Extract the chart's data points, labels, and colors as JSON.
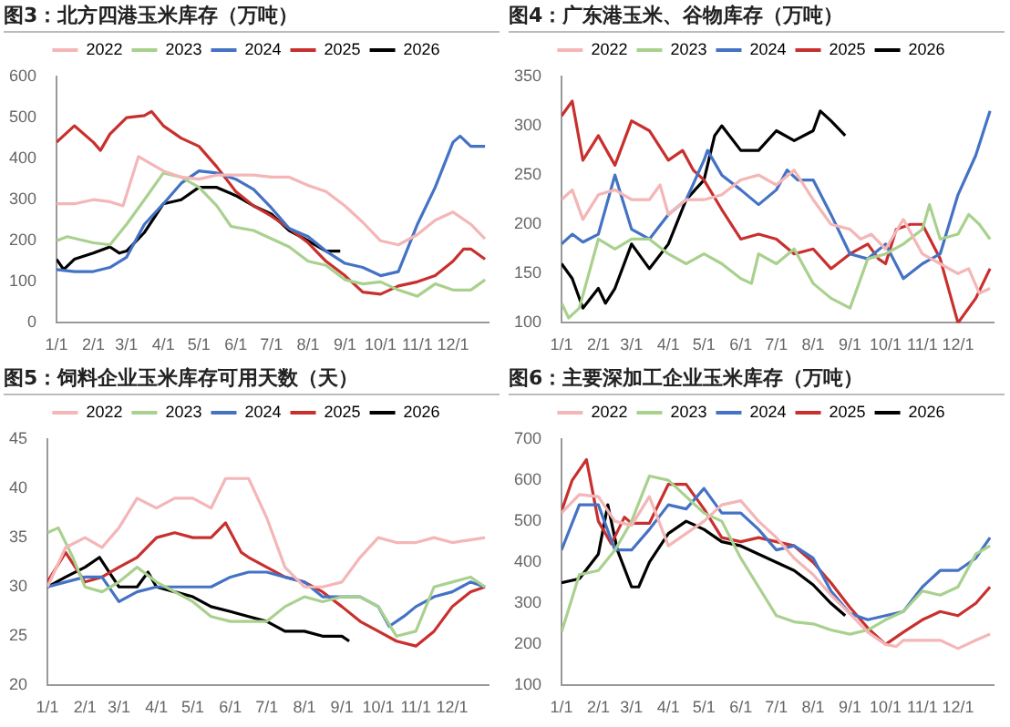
{
  "chart_data": [
    {
      "type": "line",
      "title": "图3：北方四港玉米库存（万吨）",
      "legend": "top",
      "grid": false,
      "marker": "none",
      "line_style": "solid",
      "xlim": [
        "--01-01",
        "--12-31"
      ],
      "xticks": [
        {
          "value": "--01-01",
          "label": "1/1"
        },
        {
          "value": "--02-01",
          "label": "2/1"
        },
        {
          "value": "--03-01",
          "label": "3/1"
        },
        {
          "value": "--04-01",
          "label": "4/1"
        },
        {
          "value": "--05-01",
          "label": "5/1"
        },
        {
          "value": "--06-01",
          "label": "6/1"
        },
        {
          "value": "--07-01",
          "label": "7/1"
        },
        {
          "value": "--08-01",
          "label": "8/1"
        },
        {
          "value": "--09-01",
          "label": "9/1"
        },
        {
          "value": "--10-01",
          "label": "10/1"
        },
        {
          "value": "--11-01",
          "label": "11/1"
        },
        {
          "value": "--12-01",
          "label": "12/1"
        }
      ],
      "ylim": [
        0,
        600
      ],
      "yticks": [
        0,
        100,
        200,
        300,
        400,
        500,
        600
      ],
      "series": [
        {
          "name": "2022",
          "color": "#f4b6b6",
          "x": [
            "--01-01",
            "--01-16",
            "--02-01",
            "--02-15",
            "--02-26",
            "--03-11",
            "--04-01",
            "--04-16",
            "--05-01",
            "--05-16",
            "--06-01",
            "--06-16",
            "--07-01",
            "--07-16",
            "--08-01",
            "--08-16",
            "--09-01",
            "--09-16",
            "--10-01",
            "--10-16",
            "--11-01",
            "--11-16",
            "--12-01",
            "--12-16",
            "--12-28"
          ],
          "values": [
            290,
            290,
            300,
            295,
            285,
            405,
            370,
            355,
            350,
            360,
            360,
            360,
            355,
            355,
            335,
            320,
            285,
            245,
            200,
            190,
            215,
            250,
            270,
            240,
            205
          ]
        },
        {
          "name": "2023",
          "color": "#a9d18e",
          "x": [
            "--01-01",
            "--01-10",
            "--02-01",
            "--02-15",
            "--03-01",
            "--03-16",
            "--04-01",
            "--04-16",
            "--05-01",
            "--05-16",
            "--05-28",
            "--06-16",
            "--07-01",
            "--07-16",
            "--08-01",
            "--08-16",
            "--09-01",
            "--09-16",
            "--10-01",
            "--10-16",
            "--11-01",
            "--11-16",
            "--12-01",
            "--12-16",
            "--12-28"
          ],
          "values": [
            200,
            210,
            195,
            190,
            240,
            300,
            365,
            355,
            330,
            285,
            235,
            225,
            205,
            185,
            150,
            140,
            105,
            95,
            100,
            80,
            65,
            95,
            80,
            80,
            105
          ]
        },
        {
          "name": "2024",
          "color": "#4472c4",
          "x": [
            "--01-01",
            "--01-16",
            "--02-01",
            "--02-15",
            "--03-01",
            "--03-16",
            "--04-01",
            "--04-16",
            "--05-01",
            "--05-16",
            "--06-01",
            "--06-16",
            "--07-01",
            "--07-16",
            "--08-01",
            "--08-16",
            "--09-01",
            "--09-16",
            "--10-01",
            "--10-16",
            "--11-01",
            "--11-16",
            "--12-01",
            "--12-07",
            "--12-16",
            "--12-28"
          ],
          "values": [
            130,
            125,
            125,
            135,
            160,
            240,
            290,
            340,
            370,
            365,
            350,
            325,
            280,
            230,
            210,
            175,
            145,
            135,
            115,
            125,
            240,
            330,
            440,
            455,
            430,
            430
          ]
        },
        {
          "name": "2025",
          "color": "#c8302e",
          "x": [
            "--01-01",
            "--01-16",
            "--02-01",
            "--02-07",
            "--02-15",
            "--03-01",
            "--03-16",
            "--03-22",
            "--04-01",
            "--04-16",
            "--05-01",
            "--05-16",
            "--06-01",
            "--06-16",
            "--07-01",
            "--07-16",
            "--08-01",
            "--08-16",
            "--09-01",
            "--09-16",
            "--10-01",
            "--10-16",
            "--11-01",
            "--11-16",
            "--12-01",
            "--12-10",
            "--12-16",
            "--12-28"
          ],
          "values": [
            440,
            480,
            440,
            420,
            460,
            500,
            505,
            515,
            480,
            450,
            430,
            380,
            320,
            285,
            260,
            230,
            195,
            150,
            115,
            75,
            70,
            90,
            100,
            115,
            150,
            180,
            180,
            155
          ]
        },
        {
          "name": "2026",
          "color": "#000000",
          "x": [
            "--01-01",
            "--01-07",
            "--01-16",
            "--02-01",
            "--02-15",
            "--02-23",
            "--03-01",
            "--03-16",
            "--04-01",
            "--04-16",
            "--05-01",
            "--05-16",
            "--06-01",
            "--06-16",
            "--07-01",
            "--07-16",
            "--08-01",
            "--08-16",
            "--08-28"
          ],
          "values": [
            155,
            130,
            155,
            170,
            185,
            170,
            175,
            220,
            290,
            300,
            330,
            330,
            310,
            285,
            265,
            225,
            200,
            175,
            175
          ]
        }
      ]
    },
    {
      "type": "line",
      "title": "图4：广东港玉米、谷物库存（万吨）",
      "legend": "top",
      "grid": false,
      "marker": "none",
      "line_style": "solid",
      "xlim": [
        "--01-01",
        "--12-31"
      ],
      "xticks": [
        {
          "value": "--01-01",
          "label": "1/1"
        },
        {
          "value": "--02-01",
          "label": "2/1"
        },
        {
          "value": "--03-01",
          "label": "3/1"
        },
        {
          "value": "--04-01",
          "label": "4/1"
        },
        {
          "value": "--05-01",
          "label": "5/1"
        },
        {
          "value": "--06-01",
          "label": "6/1"
        },
        {
          "value": "--07-01",
          "label": "7/1"
        },
        {
          "value": "--08-01",
          "label": "8/1"
        },
        {
          "value": "--09-01",
          "label": "9/1"
        },
        {
          "value": "--10-01",
          "label": "10/1"
        },
        {
          "value": "--11-01",
          "label": "11/1"
        },
        {
          "value": "--12-01",
          "label": "12/1"
        }
      ],
      "ylim": [
        100,
        350
      ],
      "yticks": [
        100,
        150,
        200,
        250,
        300,
        350
      ],
      "series": [
        {
          "name": "2022",
          "color": "#f4b6b6",
          "x": [
            "--01-01",
            "--01-10",
            "--01-19",
            "--02-01",
            "--02-15",
            "--03-01",
            "--03-16",
            "--03-25",
            "--04-01",
            "--04-16",
            "--05-01",
            "--05-16",
            "--06-01",
            "--06-16",
            "--07-01",
            "--07-16",
            "--08-01",
            "--08-16",
            "--09-01",
            "--09-10",
            "--09-19",
            "--10-01",
            "--10-16",
            "--11-01",
            "--11-16",
            "--12-01",
            "--12-10",
            "--12-19",
            "--12-28"
          ],
          "values": [
            225,
            235,
            205,
            230,
            235,
            225,
            225,
            240,
            210,
            225,
            225,
            230,
            245,
            250,
            240,
            255,
            225,
            200,
            195,
            185,
            190,
            175,
            205,
            170,
            160,
            150,
            155,
            130,
            135
          ]
        },
        {
          "name": "2023",
          "color": "#a9d18e",
          "x": [
            "--01-01",
            "--01-07",
            "--01-16",
            "--02-01",
            "--02-15",
            "--03-01",
            "--03-16",
            "--04-01",
            "--04-16",
            "--05-01",
            "--05-16",
            "--06-01",
            "--06-10",
            "--06-16",
            "--07-01",
            "--07-16",
            "--08-01",
            "--08-16",
            "--09-01",
            "--09-16",
            "--10-01",
            "--10-16",
            "--11-01",
            "--11-07",
            "--11-16",
            "--12-01",
            "--12-10",
            "--12-19",
            "--12-28"
          ],
          "values": [
            120,
            105,
            115,
            185,
            175,
            185,
            185,
            170,
            160,
            170,
            160,
            145,
            140,
            170,
            160,
            175,
            140,
            125,
            115,
            165,
            170,
            180,
            195,
            220,
            185,
            190,
            210,
            200,
            185
          ]
        },
        {
          "name": "2024",
          "color": "#4472c4",
          "x": [
            "--01-01",
            "--01-10",
            "--01-19",
            "--02-01",
            "--02-15",
            "--03-01",
            "--03-16",
            "--04-01",
            "--04-16",
            "--05-01",
            "--05-04",
            "--05-16",
            "--06-01",
            "--06-16",
            "--07-01",
            "--07-10",
            "--07-19",
            "--08-01",
            "--08-16",
            "--09-01",
            "--09-16",
            "--10-01",
            "--10-16",
            "--11-01",
            "--11-16",
            "--12-01",
            "--12-16",
            "--12-28"
          ],
          "values": [
            180,
            190,
            182,
            190,
            250,
            195,
            185,
            210,
            225,
            265,
            275,
            250,
            235,
            220,
            235,
            255,
            245,
            245,
            210,
            170,
            165,
            180,
            145,
            160,
            170,
            230,
            270,
            315
          ]
        },
        {
          "name": "2025",
          "color": "#c8302e",
          "x": [
            "--01-01",
            "--01-10",
            "--01-19",
            "--02-01",
            "--02-15",
            "--03-01",
            "--03-16",
            "--04-01",
            "--04-13",
            "--04-22",
            "--05-01",
            "--05-16",
            "--06-01",
            "--06-16",
            "--07-01",
            "--07-16",
            "--08-01",
            "--08-16",
            "--09-01",
            "--09-16",
            "--09-25",
            "--10-01",
            "--10-10",
            "--10-22",
            "--11-01",
            "--11-16",
            "--12-01",
            "--12-16",
            "--12-28"
          ],
          "values": [
            310,
            325,
            265,
            290,
            260,
            305,
            295,
            265,
            275,
            255,
            245,
            215,
            185,
            190,
            185,
            170,
            175,
            155,
            170,
            180,
            165,
            160,
            195,
            200,
            200,
            165,
            100,
            125,
            155
          ]
        },
        {
          "name": "2026",
          "color": "#000000",
          "x": [
            "--01-01",
            "--01-10",
            "--01-19",
            "--02-01",
            "--02-07",
            "--02-15",
            "--03-01",
            "--03-16",
            "--04-01",
            "--04-16",
            "--05-01",
            "--05-10",
            "--05-16",
            "--06-01",
            "--06-16",
            "--07-01",
            "--07-16",
            "--08-01",
            "--08-07",
            "--08-16",
            "--08-28"
          ],
          "values": [
            160,
            145,
            115,
            135,
            120,
            135,
            180,
            155,
            180,
            225,
            245,
            290,
            300,
            275,
            275,
            295,
            285,
            295,
            315,
            305,
            290
          ]
        }
      ]
    },
    {
      "type": "line",
      "title": "图5：饲料企业玉米库存可用天数（天）",
      "legend": "top",
      "grid": false,
      "marker": "none",
      "line_style": "solid",
      "xlim": [
        "--01-01",
        "--12-31"
      ],
      "xticks": [
        {
          "value": "--01-01",
          "label": "1/1"
        },
        {
          "value": "--02-01",
          "label": "2/1"
        },
        {
          "value": "--03-01",
          "label": "3/1"
        },
        {
          "value": "--04-01",
          "label": "4/1"
        },
        {
          "value": "--05-01",
          "label": "5/1"
        },
        {
          "value": "--06-01",
          "label": "6/1"
        },
        {
          "value": "--07-01",
          "label": "7/1"
        },
        {
          "value": "--08-01",
          "label": "8/1"
        },
        {
          "value": "--09-01",
          "label": "9/1"
        },
        {
          "value": "--10-01",
          "label": "10/1"
        },
        {
          "value": "--11-01",
          "label": "11/1"
        },
        {
          "value": "--12-01",
          "label": "12/1"
        }
      ],
      "ylim": [
        20,
        45
      ],
      "yticks": [
        20,
        25,
        30,
        35,
        40,
        45
      ],
      "series": [
        {
          "name": "2022",
          "color": "#f4b6b6",
          "x": [
            "--01-01",
            "--01-16",
            "--02-01",
            "--02-15",
            "--03-01",
            "--03-16",
            "--04-01",
            "--04-16",
            "--05-01",
            "--05-16",
            "--05-28",
            "--06-16",
            "--07-01",
            "--07-16",
            "--08-01",
            "--08-16",
            "--09-01",
            "--09-16",
            "--10-01",
            "--10-16",
            "--11-01",
            "--11-16",
            "--12-01",
            "--12-28"
          ],
          "values": [
            30,
            34,
            35,
            34,
            36,
            39,
            38,
            39,
            39,
            38,
            41,
            41,
            37,
            32,
            30,
            30,
            30.5,
            33,
            35,
            34.5,
            34.5,
            35,
            34.5,
            35
          ]
        },
        {
          "name": "2023",
          "color": "#a9d18e",
          "x": [
            "--01-01",
            "--01-10",
            "--01-22",
            "--02-01",
            "--02-15",
            "--03-01",
            "--03-16",
            "--04-01",
            "--04-16",
            "--05-01",
            "--05-16",
            "--06-01",
            "--06-16",
            "--07-01",
            "--07-16",
            "--08-01",
            "--08-16",
            "--09-01",
            "--09-16",
            "--10-01",
            "--10-16",
            "--11-01",
            "--11-16",
            "--12-01",
            "--12-16",
            "--12-28"
          ],
          "values": [
            35.5,
            36,
            33,
            30,
            29.5,
            30.5,
            32,
            30.5,
            29.5,
            28.5,
            27,
            26.5,
            26.5,
            26.5,
            28,
            29,
            28.5,
            29,
            29,
            28,
            25,
            25.5,
            30,
            30.5,
            31,
            30
          ]
        },
        {
          "name": "2024",
          "color": "#4472c4",
          "x": [
            "--01-01",
            "--01-16",
            "--02-01",
            "--02-15",
            "--03-01",
            "--03-16",
            "--04-01",
            "--04-16",
            "--05-01",
            "--05-16",
            "--06-01",
            "--06-16",
            "--07-01",
            "--07-16",
            "--08-01",
            "--08-16",
            "--09-01",
            "--09-16",
            "--10-01",
            "--10-10",
            "--10-22",
            "--11-01",
            "--11-16",
            "--12-01",
            "--12-16",
            "--12-28"
          ],
          "values": [
            30,
            30.5,
            31,
            31,
            28.5,
            29.5,
            30,
            30,
            30,
            30,
            31,
            31.5,
            31.5,
            31,
            30.5,
            29,
            29,
            29,
            28,
            26,
            27,
            28,
            29,
            29.5,
            30.5,
            30
          ]
        },
        {
          "name": "2025",
          "color": "#c8302e",
          "x": [
            "--01-01",
            "--01-16",
            "--02-01",
            "--02-15",
            "--03-01",
            "--03-16",
            "--04-01",
            "--04-16",
            "--05-01",
            "--05-16",
            "--05-28",
            "--06-10",
            "--06-16",
            "--07-01",
            "--07-16",
            "--08-01",
            "--08-16",
            "--09-01",
            "--09-16",
            "--10-01",
            "--10-16",
            "--11-01",
            "--11-16",
            "--12-01",
            "--12-16",
            "--12-28"
          ],
          "values": [
            30.5,
            33.5,
            30.5,
            31,
            32,
            33,
            35,
            35.5,
            35,
            35,
            36.5,
            33.5,
            33,
            32,
            31,
            30.5,
            29.5,
            28,
            26.5,
            25.5,
            24.5,
            24,
            25.5,
            28,
            29.5,
            30
          ]
        },
        {
          "name": "2026",
          "color": "#000000",
          "x": [
            "--01-01",
            "--01-16",
            "--02-01",
            "--02-13",
            "--02-21",
            "--03-01",
            "--03-16",
            "--03-25",
            "--04-01",
            "--04-16",
            "--05-01",
            "--05-16",
            "--06-01",
            "--06-16",
            "--07-01",
            "--07-16",
            "--08-01",
            "--08-16",
            "--09-01",
            "--09-07"
          ],
          "values": [
            30,
            31,
            32,
            33,
            31.5,
            30,
            30,
            31.5,
            30,
            29.5,
            29,
            28,
            27.5,
            27,
            26.5,
            25.5,
            25.5,
            25,
            25,
            24.5
          ]
        }
      ]
    },
    {
      "type": "line",
      "title": "图6：主要深加工企业玉米库存（万吨）",
      "legend": "top",
      "grid": false,
      "marker": "none",
      "line_style": "solid",
      "xlim": [
        "--01-01",
        "--12-31"
      ],
      "xticks": [
        {
          "value": "--01-01",
          "label": "1/1"
        },
        {
          "value": "--02-01",
          "label": "2/1"
        },
        {
          "value": "--03-01",
          "label": "3/1"
        },
        {
          "value": "--04-01",
          "label": "4/1"
        },
        {
          "value": "--05-01",
          "label": "5/1"
        },
        {
          "value": "--06-01",
          "label": "6/1"
        },
        {
          "value": "--07-01",
          "label": "7/1"
        },
        {
          "value": "--08-01",
          "label": "8/1"
        },
        {
          "value": "--09-01",
          "label": "9/1"
        },
        {
          "value": "--10-01",
          "label": "10/1"
        },
        {
          "value": "--11-01",
          "label": "11/1"
        },
        {
          "value": "--12-01",
          "label": "12/1"
        }
      ],
      "ylim": [
        100,
        700
      ],
      "yticks": [
        100,
        200,
        300,
        400,
        500,
        600,
        700
      ],
      "series": [
        {
          "name": "2022",
          "color": "#f4b6b6",
          "x": [
            "--01-01",
            "--01-16",
            "--02-01",
            "--02-15",
            "--03-01",
            "--03-16",
            "--04-01",
            "--04-16",
            "--05-01",
            "--05-16",
            "--06-01",
            "--06-16",
            "--07-01",
            "--07-16",
            "--08-01",
            "--08-16",
            "--09-01",
            "--09-16",
            "--10-01",
            "--10-10",
            "--10-16",
            "--11-01",
            "--11-16",
            "--12-01",
            "--12-16",
            "--12-28"
          ],
          "values": [
            520,
            565,
            560,
            500,
            490,
            560,
            440,
            470,
            500,
            540,
            550,
            500,
            460,
            410,
            370,
            320,
            275,
            230,
            200,
            195,
            210,
            210,
            210,
            190,
            210,
            225
          ]
        },
        {
          "name": "2023",
          "color": "#a9d18e",
          "x": [
            "--01-01",
            "--01-16",
            "--02-01",
            "--02-15",
            "--03-01",
            "--03-16",
            "--04-01",
            "--04-16",
            "--05-01",
            "--05-16",
            "--06-01",
            "--06-16",
            "--07-01",
            "--07-16",
            "--08-01",
            "--08-16",
            "--09-01",
            "--09-16",
            "--10-01",
            "--10-16",
            "--11-01",
            "--11-16",
            "--12-01",
            "--12-16",
            "--12-28"
          ],
          "values": [
            230,
            370,
            380,
            430,
            500,
            610,
            600,
            560,
            520,
            500,
            410,
            340,
            270,
            255,
            250,
            235,
            225,
            235,
            260,
            280,
            330,
            320,
            340,
            420,
            440
          ]
        },
        {
          "name": "2024",
          "color": "#4472c4",
          "x": [
            "--01-01",
            "--01-16",
            "--02-01",
            "--02-15",
            "--03-01",
            "--03-16",
            "--04-01",
            "--04-16",
            "--05-01",
            "--05-16",
            "--06-01",
            "--06-16",
            "--07-01",
            "--07-16",
            "--08-01",
            "--08-16",
            "--09-01",
            "--09-16",
            "--10-01",
            "--10-16",
            "--11-01",
            "--11-16",
            "--12-01",
            "--12-16",
            "--12-28"
          ],
          "values": [
            430,
            540,
            540,
            430,
            430,
            480,
            540,
            530,
            580,
            520,
            520,
            480,
            430,
            440,
            410,
            330,
            275,
            260,
            270,
            280,
            340,
            380,
            380,
            410,
            460
          ]
        },
        {
          "name": "2025",
          "color": "#c8302e",
          "x": [
            "--01-01",
            "--01-10",
            "--01-22",
            "--02-01",
            "--02-12",
            "--02-23",
            "--03-01",
            "--03-16",
            "--04-01",
            "--04-16",
            "--05-01",
            "--05-16",
            "--06-01",
            "--06-16",
            "--07-01",
            "--07-16",
            "--08-01",
            "--08-16",
            "--09-01",
            "--09-16",
            "--10-01",
            "--10-16",
            "--11-01",
            "--11-16",
            "--12-01",
            "--12-16",
            "--12-28"
          ],
          "values": [
            525,
            600,
            650,
            500,
            445,
            510,
            495,
            495,
            590,
            590,
            530,
            460,
            450,
            460,
            450,
            440,
            400,
            350,
            290,
            240,
            200,
            230,
            260,
            280,
            270,
            300,
            340
          ]
        },
        {
          "name": "2026",
          "color": "#000000",
          "x": [
            "--01-01",
            "--01-16",
            "--02-01",
            "--02-09",
            "--02-17",
            "--03-01",
            "--03-07",
            "--03-16",
            "--04-01",
            "--04-16",
            "--05-01",
            "--05-16",
            "--06-01",
            "--06-16",
            "--07-01",
            "--07-16",
            "--08-01",
            "--08-16",
            "--08-28"
          ],
          "values": [
            350,
            360,
            420,
            540,
            430,
            340,
            340,
            400,
            470,
            500,
            480,
            450,
            440,
            420,
            400,
            380,
            345,
            300,
            270
          ]
        }
      ]
    }
  ]
}
